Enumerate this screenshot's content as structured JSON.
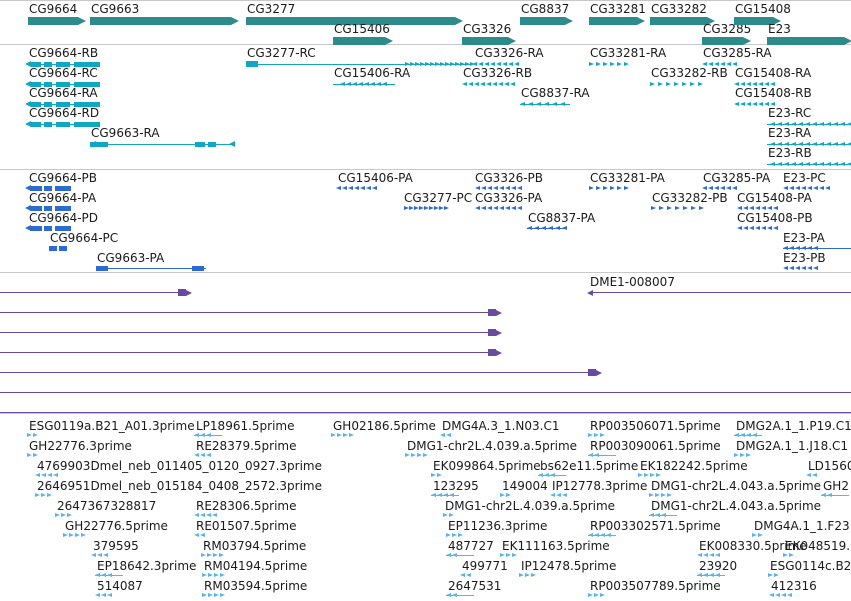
{
  "colors": {
    "gene": "#2e8b8b",
    "transcript": "#11a6c4",
    "protein": "#2e6bd1",
    "alignment": "#6a4aa0",
    "est": "#5bb4e6",
    "separator": "#c8c8c8"
  },
  "tracks": [
    {
      "id": "genes",
      "name": "gene-track"
    },
    {
      "id": "transcripts",
      "name": "transcript-track"
    },
    {
      "id": "proteins",
      "name": "protein-track"
    },
    {
      "id": "alignments",
      "name": "alignment-track"
    },
    {
      "id": "ests",
      "name": "est-track"
    }
  ],
  "genes": [
    {
      "label": "CG9664"
    },
    {
      "label": "CG9663"
    },
    {
      "label": "CG3277"
    },
    {
      "label": "CG15406"
    },
    {
      "label": "CG3326"
    },
    {
      "label": "CG8837"
    },
    {
      "label": "CG33281"
    },
    {
      "label": "CG33282"
    },
    {
      "label": "CG3285"
    },
    {
      "label": "CG15408"
    },
    {
      "label": "E23"
    }
  ],
  "transcripts": [
    {
      "label": "CG9664-RB"
    },
    {
      "label": "CG9664-RC"
    },
    {
      "label": "CG9664-RA"
    },
    {
      "label": "CG9664-RD"
    },
    {
      "label": "CG9663-RA"
    },
    {
      "label": "CG3277-RC"
    },
    {
      "label": "CG15406-RA"
    },
    {
      "label": "CG3326-RA"
    },
    {
      "label": "CG3326-RB"
    },
    {
      "label": "CG8837-RA"
    },
    {
      "label": "CG33281-RA"
    },
    {
      "label": "CG33282-RB"
    },
    {
      "label": "CG3285-RA"
    },
    {
      "label": "CG15408-RA"
    },
    {
      "label": "CG15408-RB"
    },
    {
      "label": "E23-RC"
    },
    {
      "label": "E23-RA"
    },
    {
      "label": "E23-RB"
    }
  ],
  "proteins": [
    {
      "label": "CG9664-PB"
    },
    {
      "label": "CG9664-PA"
    },
    {
      "label": "CG9664-PD"
    },
    {
      "label": "CG9664-PC"
    },
    {
      "label": "CG9663-PA"
    },
    {
      "label": "CG15406-PA"
    },
    {
      "label": "CG3326-PB"
    },
    {
      "label": "CG3277-PC"
    },
    {
      "label": "CG3326-PA"
    },
    {
      "label": "CG8837-PA"
    },
    {
      "label": "CG33281-PA"
    },
    {
      "label": "CG33282-PB"
    },
    {
      "label": "CG3285-PA"
    },
    {
      "label": "CG15408-PA"
    },
    {
      "label": "CG15408-PB"
    },
    {
      "label": "E23-PC"
    },
    {
      "label": "E23-PA"
    },
    {
      "label": "E23-PB"
    }
  ],
  "alignments": [
    {
      "label": ""
    },
    {
      "label": ""
    },
    {
      "label": ""
    },
    {
      "label": ""
    },
    {
      "label": ""
    },
    {
      "label": ""
    },
    {
      "label": ""
    },
    {
      "label": "DME1-008007"
    }
  ],
  "ests": [
    {
      "label": "ESG0119a.B21_A01.3prime"
    },
    {
      "label": "LP18961.5prime"
    },
    {
      "label": "GH02186.5prime"
    },
    {
      "label": "DMG4A.3_1.N03.C1"
    },
    {
      "label": "RP003506071.5prime"
    },
    {
      "label": "DMG2A.1_1.P19.C1"
    },
    {
      "label": "GH22776.3prime"
    },
    {
      "label": "RE28379.5prime"
    },
    {
      "label": "DMG1-chr2L.4.039.a.5prime"
    },
    {
      "label": "RP003090061.5prime"
    },
    {
      "label": "DMG2A.1_1.J18.C1"
    },
    {
      "label": "4769903Dmel_neb_011405_0120_0927.3prime"
    },
    {
      "label": "EK099864.5prime"
    },
    {
      "label": "bs62e11.5prime"
    },
    {
      "label": "EK182242.5prime"
    },
    {
      "label": "LD1560"
    },
    {
      "label": "2646951Dmel_neb_015184_0408_2572.3prime"
    },
    {
      "label": "123295"
    },
    {
      "label": "149004"
    },
    {
      "label": "IP12778.3prime"
    },
    {
      "label": "DMG1-chr2L.4.043.a.5prime"
    },
    {
      "label": "GH2"
    },
    {
      "label": "2647367328817"
    },
    {
      "label": "RE28306.5prime"
    },
    {
      "label": "DMG1-chr2L.4.039.a.5prime"
    },
    {
      "label": "DMG1-chr2L.4.043.a.5prime"
    },
    {
      "label": "GH22776.5prime"
    },
    {
      "label": "RE01507.5prime"
    },
    {
      "label": "EP11236.3prime"
    },
    {
      "label": "RP003302571.5prime"
    },
    {
      "label": "DMG4A.1_1.F23"
    },
    {
      "label": "379595"
    },
    {
      "label": "RM03794.5prime"
    },
    {
      "label": "487727"
    },
    {
      "label": "EK111163.5prime"
    },
    {
      "label": "EK008330.5prime"
    },
    {
      "label": "EK048519."
    },
    {
      "label": "EP18642.3prime"
    },
    {
      "label": "RM04194.5prime"
    },
    {
      "label": "499771"
    },
    {
      "label": "IP12478.5prime"
    },
    {
      "label": "23920"
    },
    {
      "label": "ESG0114c.B2"
    },
    {
      "label": "514087"
    },
    {
      "label": "RM03594.5prime"
    },
    {
      "label": "2647531"
    },
    {
      "label": "RP003507789.5prime"
    },
    {
      "label": "412316"
    }
  ]
}
